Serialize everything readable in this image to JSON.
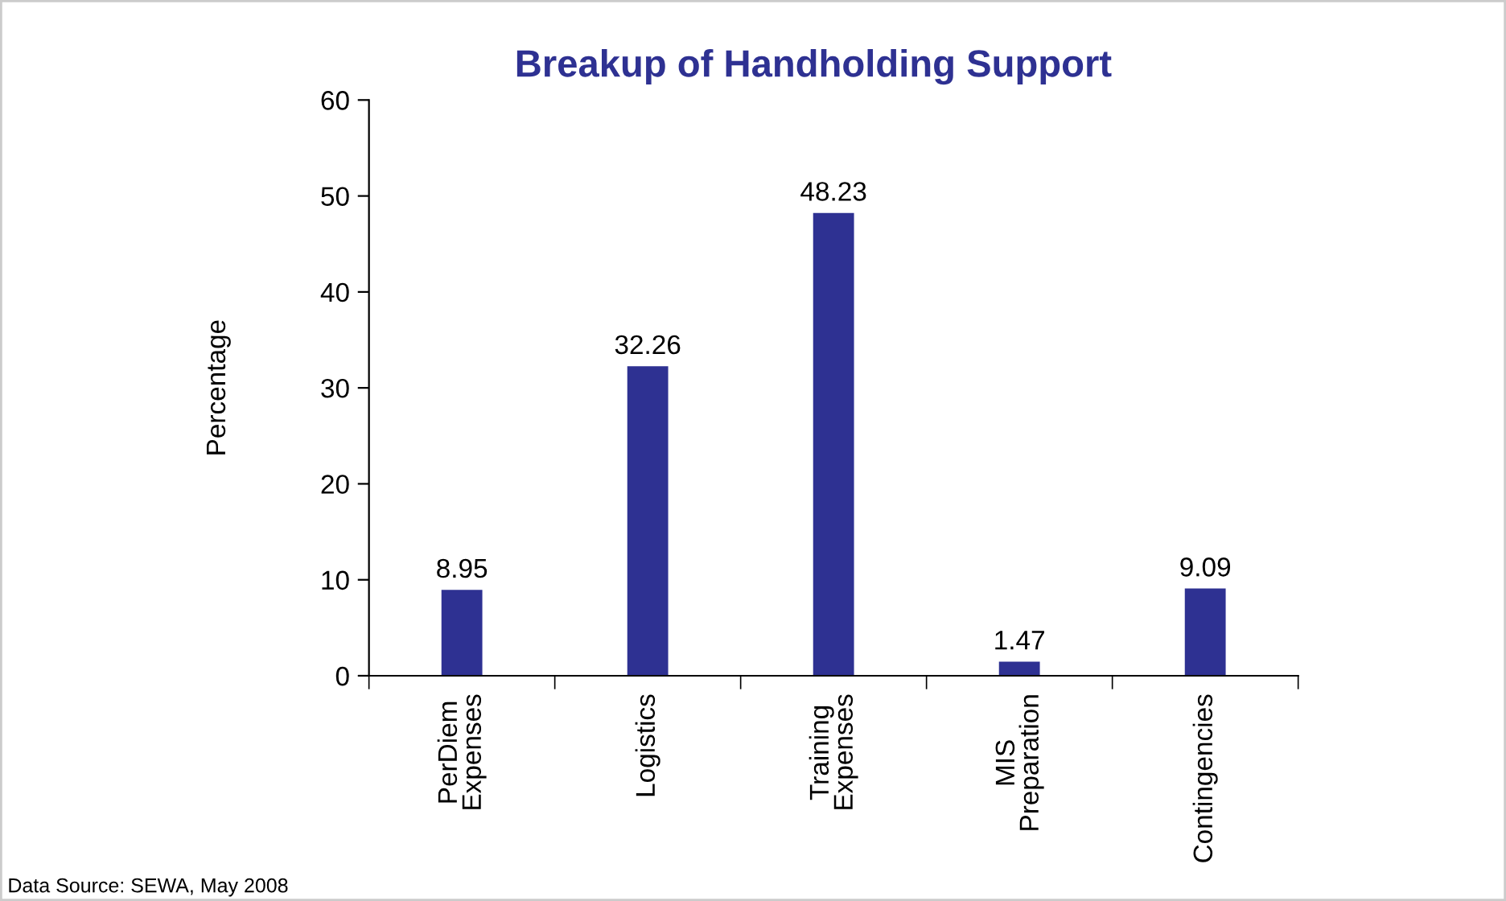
{
  "chart_data": {
    "type": "bar",
    "title": "Breakup of Handholding Support",
    "ylabel": "Percentage",
    "categories": [
      "PerDiem\nExpenses",
      "Logistics",
      "Training\nExpenses",
      "MIS\nPreparation",
      "Contingencies"
    ],
    "values": [
      8.95,
      32.26,
      48.23,
      1.47,
      9.09
    ],
    "color": "#2e3192",
    "ylim": [
      0,
      60
    ],
    "yticks": [
      0,
      10,
      20,
      30,
      40,
      50,
      60
    ],
    "grid": false,
    "data_labels": true,
    "annotations": [
      "Data Source: SEWA, May 2008"
    ]
  }
}
